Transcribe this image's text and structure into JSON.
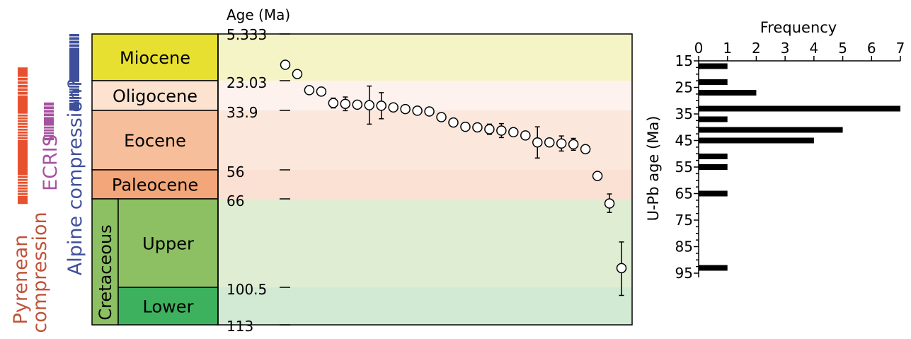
{
  "colors": {
    "pyrenean": "#e8512f",
    "pyrenean_text": "#c0533a",
    "ecris": "#a652a0",
    "alpine": "#3f4f9a",
    "miocene": "#e8e030",
    "oligocene": "#fde2d0",
    "eocene": "#f6be9a",
    "paleocene": "#f3a679",
    "cretaceous": "#8cc063",
    "upper": "#8cc063",
    "lower": "#3db15e",
    "band_miocene": "#f5f4c6",
    "band_oligocene": "#fdf2ed",
    "band_eocene": "#fbe7dc",
    "band_paleocene": "#fbe0d4",
    "band_upper": "#dfeed3",
    "band_lower": "#d2e9d3"
  },
  "chart_data": [
    {
      "type": "scatter",
      "title": "",
      "ylabel": "Age (Ma)",
      "xlabel": "",
      "ylim": [
        113,
        5.333
      ],
      "y_ticks": [
        "5.333",
        "23.03",
        "33.9",
        "56",
        "66",
        "100.5",
        "113"
      ],
      "epochs": [
        {
          "name": "Miocene",
          "top": 5.333,
          "bottom": 23.03
        },
        {
          "name": "Oligocene",
          "top": 23.03,
          "bottom": 33.9
        },
        {
          "name": "Eocene",
          "top": 33.9,
          "bottom": 56
        },
        {
          "name": "Paleocene",
          "top": 56,
          "bottom": 66
        },
        {
          "name": "Upper",
          "top": 66,
          "bottom": 100.5
        },
        {
          "name": "Lower",
          "top": 100.5,
          "bottom": 113
        }
      ],
      "period_label": "Cretaceous",
      "events": [
        {
          "name": "Pyrenean compression",
          "lines": [
            "Pyrenean",
            "compression"
          ],
          "top": 18,
          "bottom": 68
        },
        {
          "name": "ECRIS",
          "lines": [
            "ECRIS"
          ],
          "top": 31,
          "bottom": 45
        },
        {
          "name": "Alpine compression?",
          "lines": [
            "Alpine compression?"
          ],
          "top": 5.333,
          "bottom": 34
        }
      ],
      "points": [
        {
          "age": 17.0,
          "err": 0
        },
        {
          "age": 20.5,
          "err": 0
        },
        {
          "age": 26.5,
          "err": 0
        },
        {
          "age": 27.0,
          "err": 1.5
        },
        {
          "age": 31.2,
          "err": 1.8
        },
        {
          "age": 31.5,
          "err": 2.5
        },
        {
          "age": 31.8,
          "err": 0
        },
        {
          "age": 32.0,
          "err": 7.0
        },
        {
          "age": 32.2,
          "err": 4.8
        },
        {
          "age": 32.8,
          "err": 1.2
        },
        {
          "age": 33.4,
          "err": 1.2
        },
        {
          "age": 34.0,
          "err": 1.0
        },
        {
          "age": 34.3,
          "err": 0
        },
        {
          "age": 36.4,
          "err": 0
        },
        {
          "age": 38.4,
          "err": 0
        },
        {
          "age": 40.0,
          "err": 1.3
        },
        {
          "age": 40.2,
          "err": 0
        },
        {
          "age": 40.9,
          "err": 1.9
        },
        {
          "age": 41.4,
          "err": 2.6
        },
        {
          "age": 42.0,
          "err": 0
        },
        {
          "age": 43.2,
          "err": 0
        },
        {
          "age": 45.8,
          "err": 5.8
        },
        {
          "age": 45.8,
          "err": 0
        },
        {
          "age": 46.2,
          "err": 2.8
        },
        {
          "age": 46.5,
          "err": 2.2
        },
        {
          "age": 48.3,
          "err": 1.5
        },
        {
          "age": 58.1,
          "err": 0
        },
        {
          "age": 67.8,
          "err": 3.5
        },
        {
          "age": 93.0,
          "err": 10.2
        }
      ]
    },
    {
      "type": "bar",
      "orientation": "horizontal",
      "title": "Frequency",
      "xlabel": "Frequency",
      "ylabel": "U-Pb age (Ma)",
      "xlim": [
        0,
        7
      ],
      "ylim": [
        95,
        15
      ],
      "x_ticks": [
        "0",
        "1",
        "2",
        "3",
        "4",
        "5",
        "6",
        "7"
      ],
      "y_ticks": [
        "15",
        "25",
        "35",
        "45",
        "55",
        "65",
        "75",
        "85",
        "95"
      ],
      "bins": [
        17,
        23,
        27,
        33,
        37,
        41,
        45,
        51,
        55,
        65,
        93
      ],
      "values": [
        1,
        1,
        2,
        7,
        1,
        5,
        4,
        1,
        1,
        1,
        1
      ]
    }
  ]
}
